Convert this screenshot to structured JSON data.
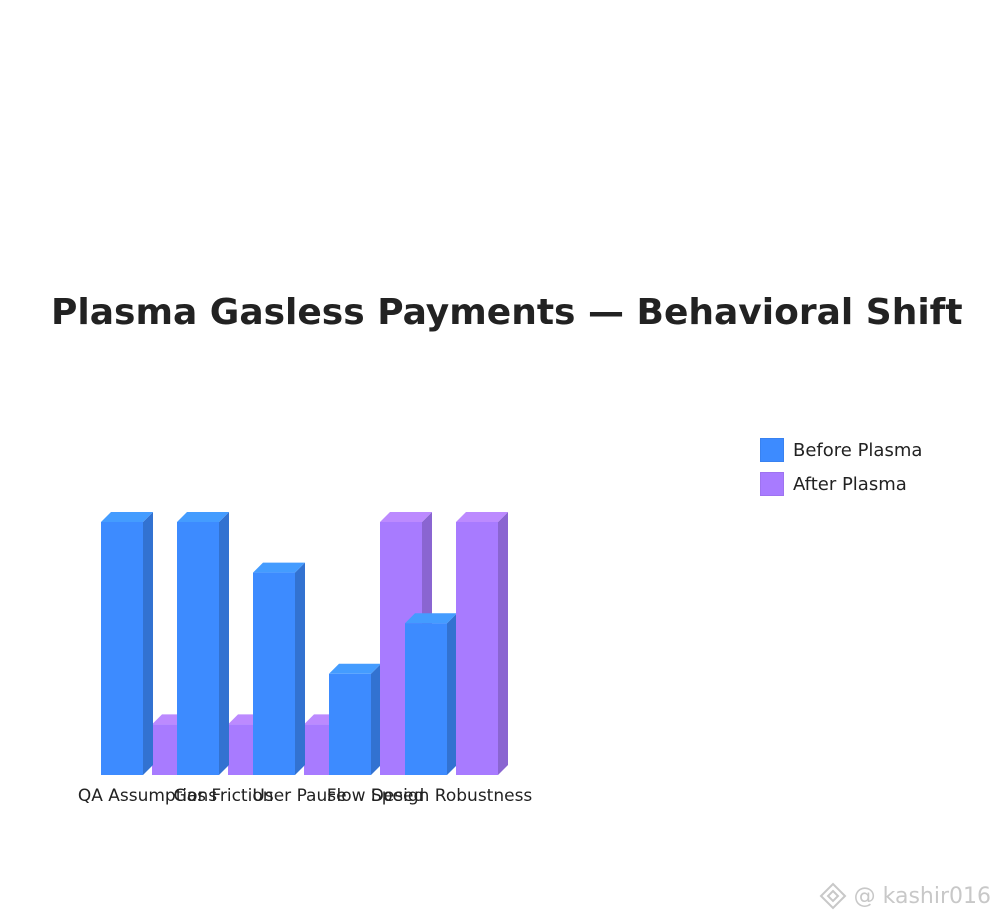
{
  "chart_data": {
    "type": "bar",
    "title": "Plasma Gasless Payments — Behavioral Shift",
    "categories": [
      "QA Assumptions",
      "Gas Friction",
      "User Pause",
      "Flow Speed",
      "Design Robustness"
    ],
    "series": [
      {
        "name": "Before Plasma",
        "values": [
          10,
          10,
          8,
          4,
          6
        ],
        "color": "#3d8bff"
      },
      {
        "name": "After Plasma",
        "values": [
          2,
          2,
          2,
          10,
          10
        ],
        "color": "#a87bff"
      }
    ],
    "ylim": [
      0,
      10
    ],
    "grid": false,
    "legend_position": "right",
    "xlabel": "",
    "ylabel": ""
  },
  "watermark": {
    "text": "@ kashir016",
    "logo_icon": "binance-square-icon"
  }
}
